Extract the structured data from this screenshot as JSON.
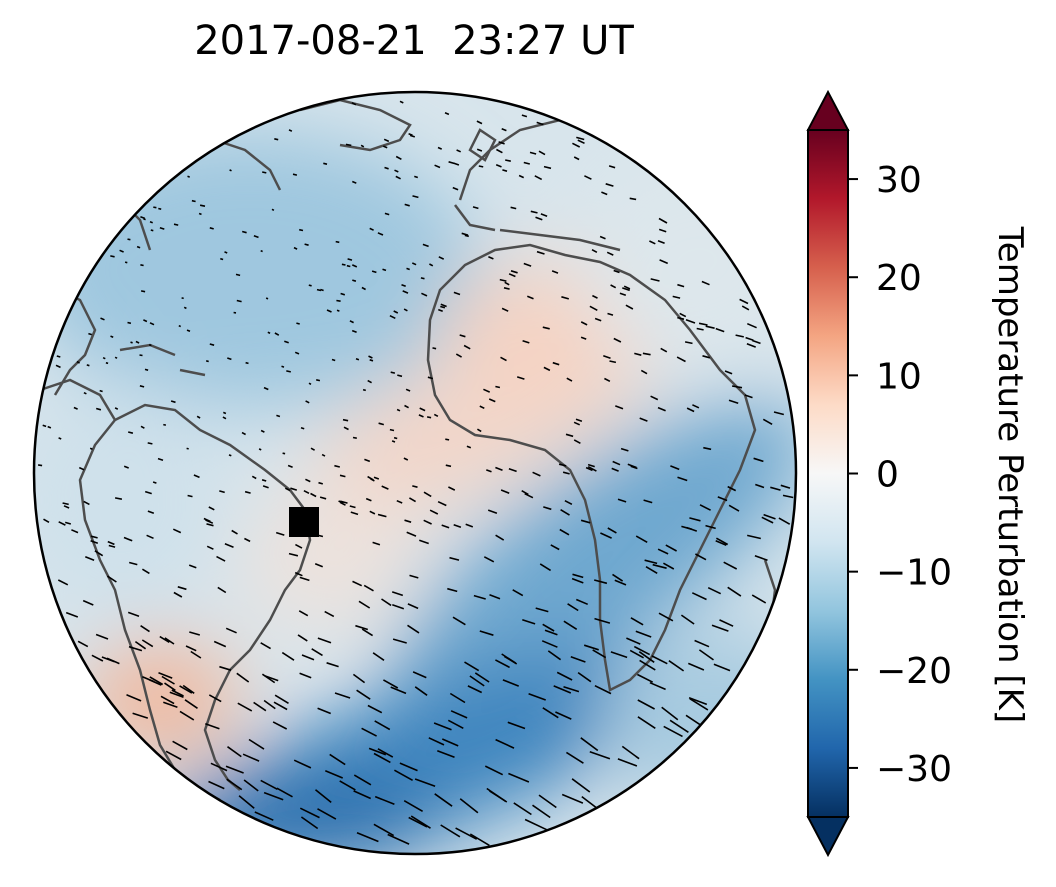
{
  "title": "2017-08-21  23:27 UT",
  "colorbar": {
    "label": "Temperature Perturbation [K]",
    "min": -35,
    "max": 35,
    "extend": "both",
    "colormap": "RdBu_r",
    "ticks": [
      {
        "value": 30,
        "label": "30"
      },
      {
        "value": 20,
        "label": "20"
      },
      {
        "value": 10,
        "label": "10"
      },
      {
        "value": 0,
        "label": "0"
      },
      {
        "value": -10,
        "label": "−10"
      },
      {
        "value": -20,
        "label": "−20"
      },
      {
        "value": -30,
        "label": "−30"
      }
    ],
    "stops": [
      "#053061",
      "#2166ac",
      "#4393c3",
      "#92c5de",
      "#d1e5f0",
      "#f7f7f7",
      "#fddbc7",
      "#f4a582",
      "#d6604d",
      "#b2182b",
      "#67001f"
    ]
  },
  "map": {
    "projection": "orthographic",
    "regions": [
      "South America",
      "Atlantic Ocean",
      "Africa",
      "North America"
    ],
    "coastline_color": "#4d4d4d",
    "marker": {
      "shape": "square",
      "color": "#000000",
      "location": "eastern Brazil"
    }
  }
}
